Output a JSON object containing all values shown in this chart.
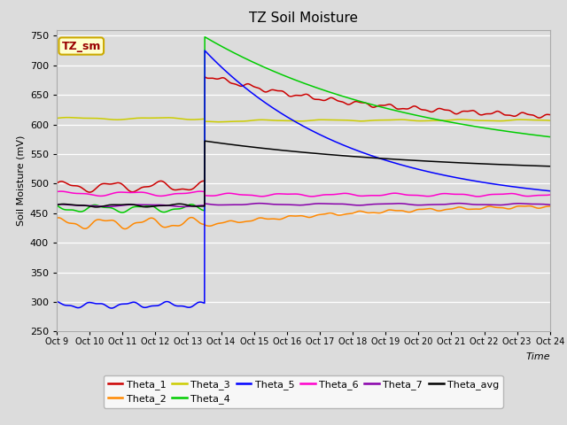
{
  "title": "TZ Soil Moisture",
  "xlabel": "Time",
  "ylabel": "Soil Moisture (mV)",
  "ylim": [
    250,
    760
  ],
  "yticks": [
    250,
    300,
    350,
    400,
    450,
    500,
    550,
    600,
    650,
    700,
    750
  ],
  "x_labels": [
    "Oct 9",
    "Oct 10",
    "Oct 11",
    "Oct 12",
    "Oct 13",
    "Oct 14",
    "Oct 15",
    "Oct 16",
    "Oct 17",
    "Oct 18",
    "Oct 19",
    "Oct 20",
    "Oct 21",
    "Oct 22",
    "Oct 23",
    "Oct 24"
  ],
  "background_color": "#dcdcdc",
  "plot_bg_color": "#dcdcdc",
  "legend_box_facecolor": "#ffffcc",
  "legend_box_edge": "#ccaa00",
  "title_label": "TZ_sm",
  "colors": {
    "Theta_1": "#cc0000",
    "Theta_2": "#ff8800",
    "Theta_3": "#cccc00",
    "Theta_4": "#00cc00",
    "Theta_5": "#0000ff",
    "Theta_6": "#ff00cc",
    "Theta_7": "#8800aa",
    "Theta_avg": "#000000"
  },
  "num_days": 15,
  "event_day": 4.5
}
